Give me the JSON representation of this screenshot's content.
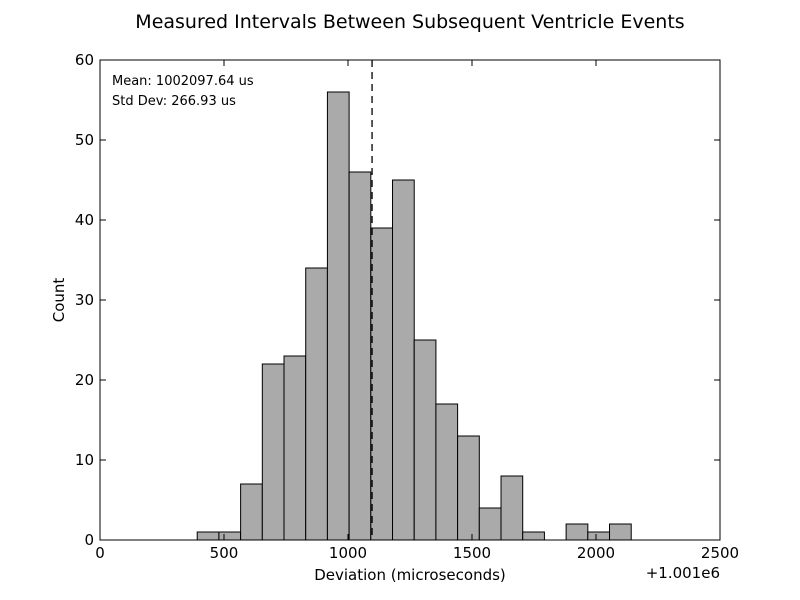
{
  "chart_data": {
    "type": "bar",
    "title": "Measured Intervals Between Subsequent Ventricle Events",
    "xlabel": "Deviation (microseconds)",
    "ylabel": "Count",
    "x_offset_label": "+1.001e6",
    "xlim": [
      0,
      2500
    ],
    "ylim": [
      0,
      60
    ],
    "x_ticks": [
      0,
      500,
      1000,
      1500,
      2000,
      2500
    ],
    "y_ticks": [
      0,
      10,
      20,
      30,
      40,
      50,
      60
    ],
    "bin_width": 87.5,
    "bin_starts": [
      392,
      479.5,
      567,
      654.5,
      742,
      829.5,
      917,
      1004.5,
      1092,
      1179.5,
      1267,
      1354.5,
      1442,
      1529.5,
      1617,
      1704.5,
      1792,
      1879.5,
      1967,
      2054.5
    ],
    "values": [
      1,
      1,
      7,
      22,
      23,
      34,
      56,
      46,
      39,
      45,
      25,
      17,
      13,
      4,
      8,
      1,
      0,
      2,
      1,
      2
    ],
    "mean_line_x": 1097,
    "bar_color": "#aaaaaa",
    "annotations": {
      "mean": "Mean: 1002097.64 us",
      "std": "Std Dev: 266.93 us"
    },
    "grid": false
  }
}
